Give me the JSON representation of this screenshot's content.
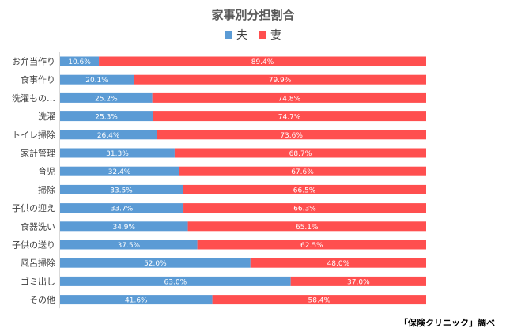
{
  "chart_data": {
    "type": "bar",
    "orientation": "horizontal-stacked-percent",
    "title": "家事別分担割合",
    "categories": [
      "お弁当作り",
      "食事作り",
      "洗濯もの…",
      "洗濯",
      "トイレ掃除",
      "家計管理",
      "育児",
      "掃除",
      "子供の迎え",
      "食器洗い",
      "子供の送り",
      "風呂掃除",
      "ゴミ出し",
      "その他"
    ],
    "series": [
      {
        "name": "夫",
        "color": "#5b9bd5",
        "values": [
          10.6,
          20.1,
          25.2,
          25.3,
          26.4,
          31.3,
          32.4,
          33.5,
          33.7,
          34.9,
          37.5,
          52.0,
          63.0,
          41.6
        ],
        "labels": [
          "10.6%",
          "20.1%",
          "25.2%",
          "25.3%",
          "26.4%",
          "31.3%",
          "32.4%",
          "33.5%",
          "33.7%",
          "34.9%",
          "37.5%",
          "52.0%",
          "63.0%",
          "41.6%"
        ]
      },
      {
        "name": "妻",
        "color": "#ff4f4f",
        "values": [
          89.4,
          79.9,
          74.8,
          74.7,
          73.6,
          68.7,
          67.6,
          66.5,
          66.3,
          65.1,
          62.5,
          48.0,
          37.0,
          58.4
        ],
        "labels": [
          "89.4%",
          "79.9%",
          "74.8%",
          "74.7%",
          "73.6%",
          "68.7%",
          "67.6%",
          "66.5%",
          "66.3%",
          "65.1%",
          "62.5%",
          "48.0%",
          "37.0%",
          "58.4%"
        ]
      }
    ],
    "xlim": [
      0,
      100
    ],
    "legend_position": "top-center",
    "grid": false
  },
  "source_note": "「保険クリニック」調べ"
}
